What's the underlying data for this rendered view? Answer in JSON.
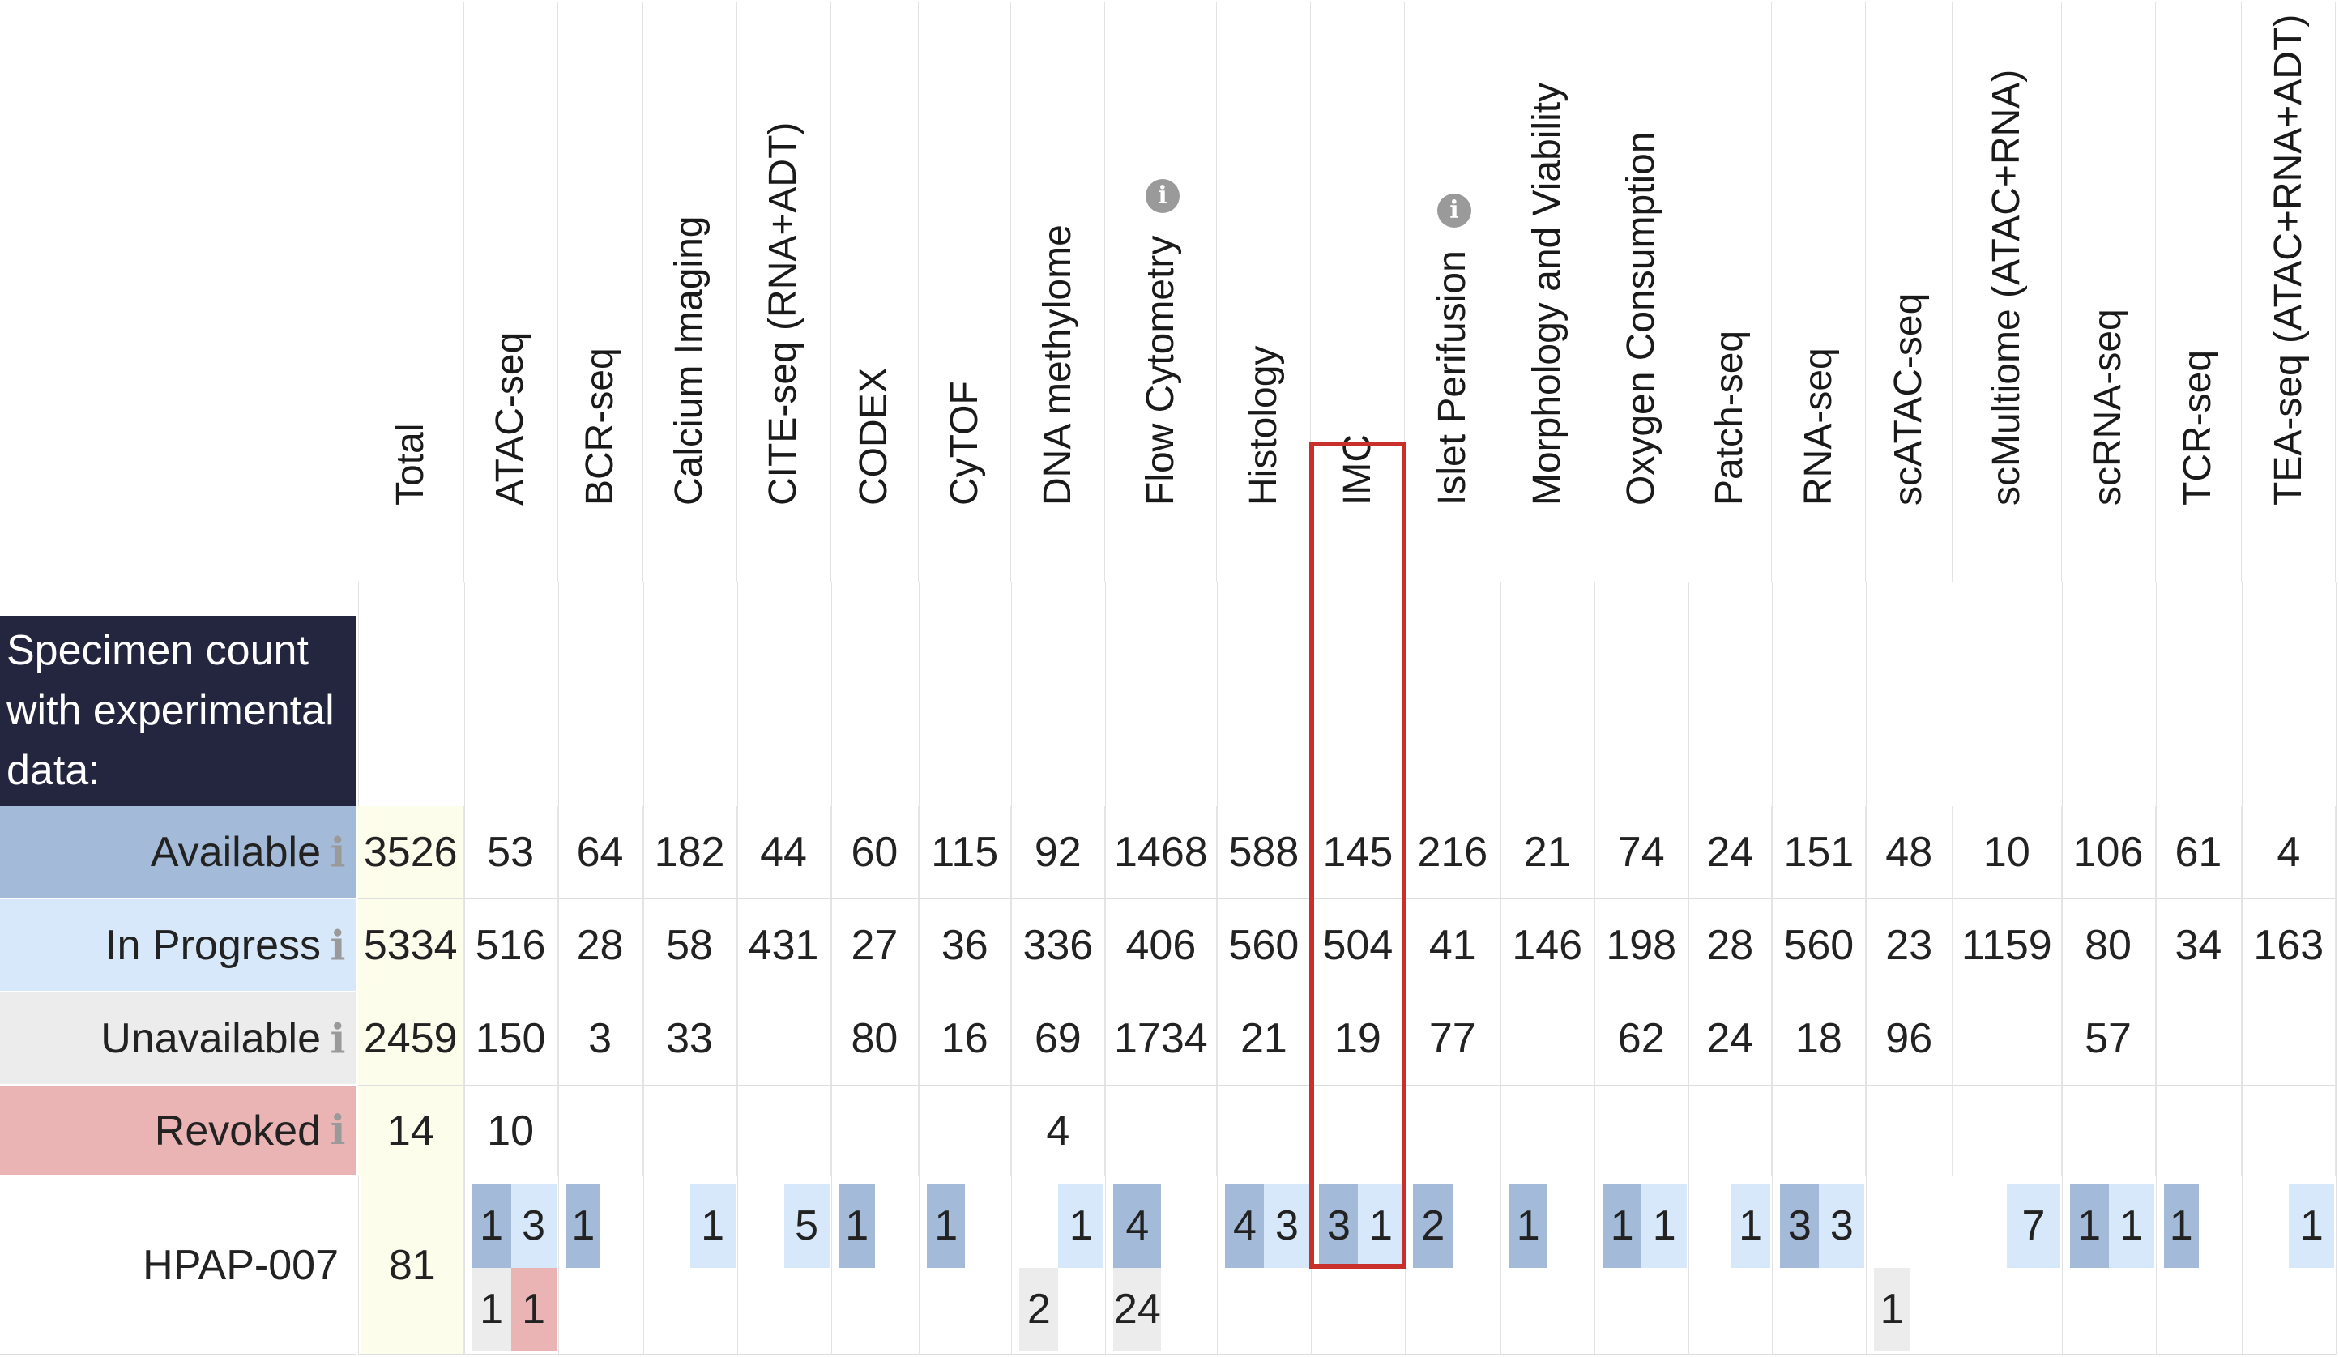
{
  "title": "Specimen count with experimental data:",
  "columns": [
    {
      "label": "Total"
    },
    {
      "label": "ATAC-seq"
    },
    {
      "label": "BCR-seq"
    },
    {
      "label": "Calcium Imaging"
    },
    {
      "label": "CITE-seq (RNA+ADT)"
    },
    {
      "label": "CODEX"
    },
    {
      "label": "CyTOF"
    },
    {
      "label": "DNA methylome"
    },
    {
      "label": "Flow Cytometry",
      "info": true
    },
    {
      "label": "Histology"
    },
    {
      "label": "IMC",
      "highlighted": true
    },
    {
      "label": "Islet Perifusion",
      "info": true
    },
    {
      "label": "Morphology and Viability"
    },
    {
      "label": "Oxygen Consumption"
    },
    {
      "label": "Patch-seq"
    },
    {
      "label": "RNA-seq"
    },
    {
      "label": "scATAC-seq"
    },
    {
      "label": "scMultiome (ATAC+RNA)"
    },
    {
      "label": "scRNA-seq"
    },
    {
      "label": "TCR-seq"
    },
    {
      "label": "TEA-seq (ATAC+RNA+ADT)"
    }
  ],
  "info_glyph": "i",
  "summary_rows": [
    {
      "label": "Available",
      "color": "#a3bad8",
      "values": [
        "3526",
        "53",
        "64",
        "182",
        "44",
        "60",
        "115",
        "92",
        "1468",
        "588",
        "145",
        "216",
        "21",
        "74",
        "24",
        "151",
        "48",
        "10",
        "106",
        "61",
        "4"
      ]
    },
    {
      "label": "In Progress",
      "color": "#d7e8fa",
      "values": [
        "5334",
        "516",
        "28",
        "58",
        "431",
        "27",
        "36",
        "336",
        "406",
        "560",
        "504",
        "41",
        "146",
        "198",
        "28",
        "560",
        "23",
        "1159",
        "80",
        "34",
        "163"
      ]
    },
    {
      "label": "Unavailable",
      "color": "#ececec",
      "values": [
        "2459",
        "150",
        "3",
        "33",
        "",
        "80",
        "16",
        "69",
        "1734",
        "21",
        "19",
        "77",
        "",
        "62",
        "24",
        "18",
        "96",
        "",
        "57",
        "",
        ""
      ]
    },
    {
      "label": "Revoked",
      "color": "#eab4b4",
      "values": [
        "14",
        "10",
        "",
        "",
        "",
        "",
        "",
        "4",
        "",
        "",
        "",
        "",
        "",
        "",
        "",
        "",
        "",
        "",
        "",
        "",
        ""
      ]
    }
  ],
  "specimen": {
    "id": "HPAP-007",
    "total": "81",
    "top": [
      [
        {
          "v": "1",
          "c": "#a3bad8"
        },
        {
          "v": "3",
          "c": "#d7e8fa"
        }
      ],
      [
        {
          "v": "1",
          "c": "#a3bad8"
        },
        null
      ],
      [
        null,
        {
          "v": "1",
          "c": "#d7e8fa"
        }
      ],
      [
        null,
        {
          "v": "5",
          "c": "#d7e8fa"
        }
      ],
      [
        {
          "v": "1",
          "c": "#a3bad8"
        },
        null
      ],
      [
        {
          "v": "1",
          "c": "#a3bad8"
        },
        null
      ],
      [
        null,
        {
          "v": "1",
          "c": "#d7e8fa"
        }
      ],
      [
        {
          "v": "4",
          "c": "#a3bad8"
        },
        null
      ],
      [
        {
          "v": "4",
          "c": "#a3bad8"
        },
        {
          "v": "3",
          "c": "#d7e8fa"
        }
      ],
      [
        {
          "v": "3",
          "c": "#a3bad8"
        },
        {
          "v": "1",
          "c": "#d7e8fa"
        }
      ],
      [
        {
          "v": "2",
          "c": "#a3bad8"
        },
        null
      ],
      [
        {
          "v": "1",
          "c": "#a3bad8"
        },
        null
      ],
      [
        {
          "v": "1",
          "c": "#a3bad8"
        },
        {
          "v": "1",
          "c": "#d7e8fa"
        }
      ],
      [
        null,
        {
          "v": "1",
          "c": "#d7e8fa"
        }
      ],
      [
        {
          "v": "3",
          "c": "#a3bad8"
        },
        {
          "v": "3",
          "c": "#d7e8fa"
        }
      ],
      [
        null,
        null
      ],
      [
        null,
        {
          "v": "7",
          "c": "#d7e8fa"
        }
      ],
      [
        {
          "v": "1",
          "c": "#a3bad8"
        },
        {
          "v": "1",
          "c": "#d7e8fa"
        }
      ],
      [
        {
          "v": "1",
          "c": "#a3bad8"
        },
        null
      ],
      [
        null,
        {
          "v": "1",
          "c": "#d7e8fa"
        }
      ]
    ],
    "bottom": [
      [
        {
          "v": "1",
          "c": "#ececec"
        },
        {
          "v": "1",
          "c": "#eab4b4"
        }
      ],
      [
        null,
        null
      ],
      [
        null,
        null
      ],
      [
        null,
        null
      ],
      [
        null,
        null
      ],
      [
        null,
        null
      ],
      [
        {
          "v": "2",
          "c": "#ececec"
        },
        null
      ],
      [
        {
          "v": "24",
          "c": "#ececec"
        },
        null
      ],
      [
        null,
        null
      ],
      [
        null,
        null
      ],
      [
        null,
        null
      ],
      [
        null,
        null
      ],
      [
        null,
        null
      ],
      [
        null,
        null
      ],
      [
        null,
        null
      ],
      [
        {
          "v": "1",
          "c": "#ececec"
        },
        null
      ],
      [
        null,
        null
      ],
      [
        null,
        null
      ],
      [
        null,
        null
      ],
      [
        null,
        null
      ]
    ]
  },
  "colors": {
    "available": "#a3bad8",
    "in_progress": "#d7e8fa",
    "unavailable": "#ececec",
    "revoked": "#eab4b4",
    "total_bg": "#fdfdec",
    "title_bg": "#24253f",
    "highlight": "#c9302c"
  }
}
